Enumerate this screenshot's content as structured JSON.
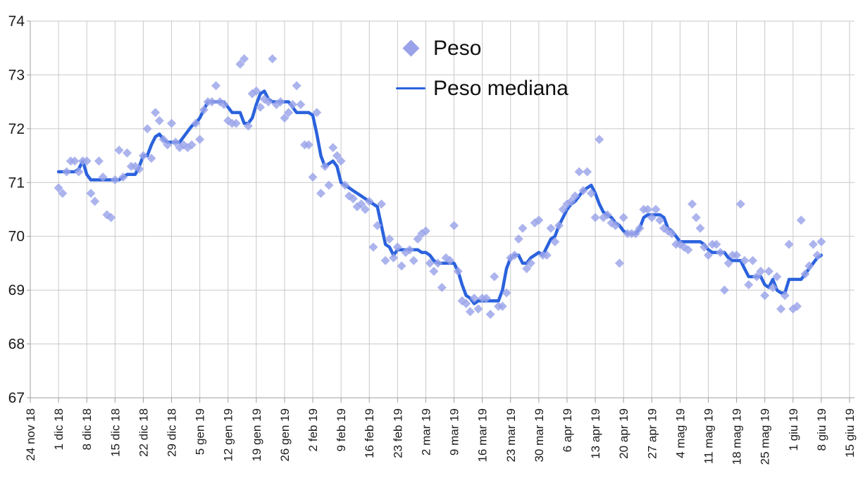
{
  "chart_data": {
    "type": "scatter",
    "title": "",
    "x_start": "2018-12-01",
    "x_step_days": 1,
    "x_tick_labels": [
      "24 nov 18",
      "1 dic 18",
      "8 dic 18",
      "15 dic 18",
      "22 dic 18",
      "29 dic 18",
      "5 gen 19",
      "12 gen 19",
      "19 gen 19",
      "26 gen 19",
      "2 feb 19",
      "9 feb 19",
      "16 feb 19",
      "23 feb 19",
      "2 mar 19",
      "9 mar 19",
      "16 mar 19",
      "23 mar 19",
      "30 mar 19",
      "6 apr 19",
      "13 apr 19",
      "20 apr 19",
      "27 apr 19",
      "4 mag 19",
      "11 mag 19",
      "18 mag 19",
      "25 mag 19",
      "1 giu 19",
      "8 giu 19",
      "15 giu 19"
    ],
    "y_ticks": [
      67,
      68,
      69,
      70,
      71,
      72,
      73,
      74
    ],
    "ylim": [
      67,
      74
    ],
    "grid": true,
    "legend_position": "top-center",
    "series": [
      {
        "name": "Peso",
        "type": "scatter",
        "marker": "diamond",
        "color": "#9AA3E9",
        "values": [
          70.9,
          70.8,
          71.2,
          71.4,
          71.4,
          71.2,
          71.4,
          71.4,
          70.8,
          70.65,
          71.4,
          71.1,
          70.4,
          70.35,
          71.05,
          71.6,
          71.1,
          71.55,
          71.3,
          71.3,
          71.25,
          71.5,
          72.0,
          71.45,
          72.3,
          72.15,
          71.8,
          71.7,
          72.1,
          71.75,
          71.65,
          71.7,
          71.65,
          71.7,
          72.1,
          71.8,
          72.35,
          72.5,
          72.5,
          72.8,
          72.5,
          72.45,
          72.15,
          72.1,
          72.1,
          73.2,
          73.3,
          72.05,
          72.65,
          72.7,
          72.4,
          72.55,
          72.5,
          73.3,
          72.45,
          72.5,
          72.2,
          72.3,
          72.45,
          72.8,
          72.45,
          71.7,
          71.7,
          71.1,
          72.3,
          70.8,
          71.3,
          70.95,
          71.65,
          71.5,
          71.4,
          70.95,
          70.75,
          70.7,
          70.55,
          70.6,
          70.5,
          70.65,
          69.8,
          70.2,
          70.6,
          69.55,
          69.95,
          69.6,
          69.8,
          69.45,
          69.7,
          69.75,
          69.55,
          69.95,
          70.05,
          70.1,
          69.5,
          69.35,
          69.5,
          69.05,
          69.6,
          69.55,
          70.2,
          69.35,
          68.8,
          68.75,
          68.6,
          68.85,
          68.65,
          68.85,
          68.85,
          68.55,
          69.25,
          68.7,
          68.7,
          68.95,
          69.6,
          69.65,
          69.95,
          70.15,
          69.4,
          69.5,
          70.25,
          70.3,
          69.65,
          69.65,
          70.15,
          69.9,
          70.2,
          70.5,
          70.6,
          70.65,
          70.75,
          71.2,
          70.85,
          71.2,
          70.8,
          70.35,
          71.8,
          70.35,
          70.4,
          70.25,
          70.2,
          69.5,
          70.35,
          70.05,
          70.05,
          70.05,
          70.15,
          70.5,
          70.5,
          70.35,
          70.5,
          70.3,
          70.15,
          70.1,
          70.05,
          69.85,
          69.85,
          69.8,
          69.75,
          70.6,
          70.35,
          70.15,
          69.8,
          69.65,
          69.85,
          69.85,
          69.7,
          69.0,
          69.5,
          69.65,
          69.65,
          70.6,
          69.55,
          69.1,
          69.55,
          69.25,
          69.35,
          68.9,
          69.35,
          69.05,
          69.25,
          68.65,
          68.9,
          69.85,
          68.65,
          68.7,
          70.3,
          69.3,
          69.45,
          69.85,
          69.65,
          69.9
        ]
      },
      {
        "name": "Peso mediana",
        "type": "line",
        "color": "#2B62DD",
        "values": [
          71.2,
          71.2,
          71.2,
          71.2,
          71.2,
          71.25,
          71.4,
          71.15,
          71.05,
          71.05,
          71.05,
          71.05,
          71.05,
          71.05,
          71.05,
          71.05,
          71.1,
          71.15,
          71.15,
          71.15,
          71.3,
          71.5,
          71.5,
          71.7,
          71.85,
          71.9,
          71.8,
          71.75,
          71.75,
          71.75,
          71.75,
          71.85,
          71.95,
          72.05,
          72.1,
          72.2,
          72.35,
          72.5,
          72.5,
          72.5,
          72.5,
          72.5,
          72.4,
          72.3,
          72.3,
          72.3,
          72.1,
          72.1,
          72.2,
          72.45,
          72.65,
          72.7,
          72.55,
          72.5,
          72.5,
          72.5,
          72.5,
          72.5,
          72.4,
          72.3,
          72.3,
          72.3,
          72.3,
          72.25,
          71.9,
          71.5,
          71.3,
          71.35,
          71.4,
          71.3,
          71.0,
          70.95,
          70.9,
          70.85,
          70.8,
          70.75,
          70.7,
          70.65,
          70.6,
          70.55,
          70.2,
          69.85,
          69.8,
          69.65,
          69.75,
          69.75,
          69.75,
          69.75,
          69.75,
          69.75,
          69.7,
          69.7,
          69.65,
          69.55,
          69.5,
          69.5,
          69.5,
          69.5,
          69.5,
          69.35,
          69.1,
          68.9,
          68.85,
          68.75,
          68.8,
          68.8,
          68.8,
          68.8,
          68.8,
          68.8,
          69.0,
          69.4,
          69.6,
          69.65,
          69.65,
          69.5,
          69.5,
          69.6,
          69.65,
          69.7,
          69.65,
          69.8,
          69.95,
          70.0,
          70.2,
          70.35,
          70.5,
          70.6,
          70.65,
          70.75,
          70.85,
          70.9,
          70.95,
          70.8,
          70.6,
          70.45,
          70.4,
          70.35,
          70.25,
          70.2,
          70.1,
          70.05,
          70.05,
          70.05,
          70.15,
          70.35,
          70.4,
          70.4,
          70.4,
          70.4,
          70.35,
          70.15,
          70.1,
          70.0,
          69.9,
          69.9,
          69.9,
          69.9,
          69.9,
          69.9,
          69.85,
          69.75,
          69.7,
          69.7,
          69.7,
          69.7,
          69.6,
          69.55,
          69.55,
          69.55,
          69.4,
          69.25,
          69.25,
          69.25,
          69.25,
          69.1,
          69.05,
          69.2,
          69.0,
          68.95,
          68.95,
          69.2,
          69.2,
          69.2,
          69.2,
          69.3,
          69.4,
          69.5,
          69.6,
          69.65
        ]
      }
    ]
  },
  "legend": {
    "peso_label": "Peso",
    "mediana_label": "Peso mediana"
  },
  "colors": {
    "scatter": "#9AA3E9",
    "line": "#2B62DD",
    "grid": "#C9C9C9",
    "axis": "#9E9E9E",
    "text": "#1A1A1A",
    "background": "#FFFFFF"
  }
}
